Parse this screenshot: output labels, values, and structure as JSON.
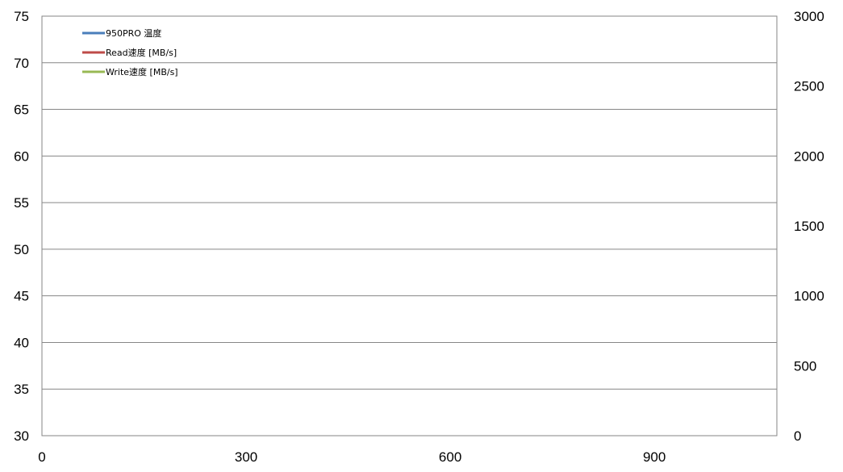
{
  "chart_data": {
    "type": "line",
    "left_axis": {
      "min": 30,
      "max": 75,
      "step": 5,
      "ticks": [
        "75",
        "70",
        "65",
        "60",
        "55",
        "50",
        "45",
        "40",
        "35",
        "30"
      ]
    },
    "right_axis": {
      "min": 0,
      "max": 3000,
      "step": 500,
      "ticks": [
        "3000",
        "2500",
        "2000",
        "1500",
        "1000",
        "500",
        "0"
      ]
    },
    "x_axis": {
      "min": 0,
      "max": 1080,
      "ticks": [
        "0",
        "300",
        "600",
        "900"
      ]
    },
    "grid": true,
    "legend_position": "top-left",
    "series": [
      {
        "name": "950PRO 温度",
        "axis": "left",
        "color": "#4a7ebb"
      },
      {
        "name": "Read速度 [MB/s]",
        "axis": "right",
        "color": "#be4b48"
      },
      {
        "name": "Write速度 [MB/s]",
        "axis": "right",
        "color": "#98b954"
      }
    ]
  }
}
